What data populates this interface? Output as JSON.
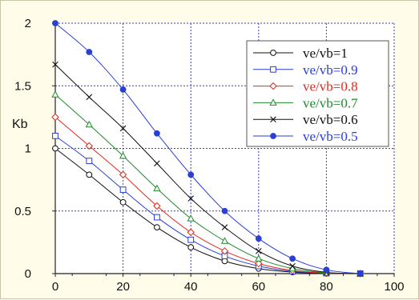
{
  "chart_data": {
    "type": "line",
    "title": "",
    "xlabel": "",
    "ylabel": "Kb",
    "xlim": [
      0,
      100
    ],
    "ylim": [
      0,
      2
    ],
    "x_ticks": [
      0,
      20,
      40,
      60,
      80,
      100
    ],
    "y_ticks": [
      0,
      0.5,
      1,
      1.5,
      2
    ],
    "x_tick_labels": [
      "0",
      "20",
      "40",
      "60",
      "80",
      "100"
    ],
    "y_tick_labels": [
      "0",
      "0.5",
      "1",
      "1.5",
      "2"
    ],
    "grid": true,
    "grid_color": "#3a3ad6",
    "plot_background": "#ffffff",
    "page_background": "#fffde9",
    "legend_position": "top-right",
    "x": [
      0,
      10,
      20,
      30,
      40,
      50,
      60,
      70,
      80,
      90
    ],
    "series": [
      {
        "name": "ve/vb=1",
        "color": "#111111",
        "marker": "circle-open",
        "values": [
          1.0,
          0.79,
          0.57,
          0.37,
          0.21,
          0.1,
          0.04,
          0.012,
          0.002,
          0.0
        ]
      },
      {
        "name": "ve/vb=0.9",
        "color": "#2a3fd4",
        "marker": "square-open",
        "values": [
          1.1,
          0.9,
          0.67,
          0.45,
          0.27,
          0.14,
          0.06,
          0.018,
          0.003,
          0.0
        ]
      },
      {
        "name": "ve/vb=0.8",
        "color": "#e0281c",
        "marker": "diamond-open",
        "values": [
          1.25,
          1.02,
          0.79,
          0.54,
          0.33,
          0.18,
          0.08,
          0.025,
          0.004,
          0.0
        ]
      },
      {
        "name": "ve/vb=0.7",
        "color": "#1f8a2c",
        "marker": "triangle-open",
        "values": [
          1.43,
          1.19,
          0.94,
          0.68,
          0.44,
          0.26,
          0.12,
          0.04,
          0.007,
          0.0
        ]
      },
      {
        "name": "ve/vb=0.6",
        "color": "#111111",
        "marker": "cross",
        "values": [
          1.67,
          1.41,
          1.16,
          0.88,
          0.6,
          0.37,
          0.18,
          0.06,
          0.01,
          0.0
        ]
      },
      {
        "name": "ve/vb=0.5",
        "color": "#2a3fd4",
        "marker": "circle-filled",
        "values": [
          2.0,
          1.77,
          1.47,
          1.12,
          0.79,
          0.5,
          0.28,
          0.12,
          0.03,
          0.0
        ]
      }
    ]
  }
}
